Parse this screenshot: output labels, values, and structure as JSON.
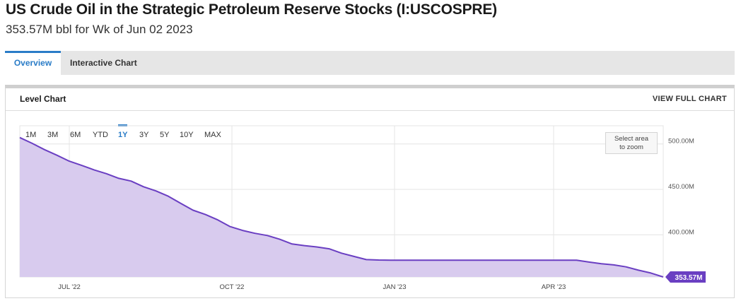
{
  "header": {
    "title": "US Crude Oil in the Strategic Petroleum Reserve Stocks (I:USCOSPRE)",
    "subtitle": "353.57M bbl for Wk of Jun 02 2023"
  },
  "tabs": [
    {
      "label": "Overview",
      "active": true
    },
    {
      "label": "Interactive Chart",
      "active": false
    }
  ],
  "card": {
    "title": "Level Chart",
    "view_full_label": "VIEW FULL CHART"
  },
  "range_buttons": [
    "1M",
    "3M",
    "6M",
    "YTD",
    "1Y",
    "3Y",
    "5Y",
    "10Y",
    "MAX"
  ],
  "range_selected": "1Y",
  "zoom_hint": {
    "line1": "Select area",
    "line2": "to zoom"
  },
  "colors": {
    "accent": "#2a7cc7",
    "line": "#6a3fc2",
    "area": "#d8cbee",
    "last_label_bg": "#6a3fc2"
  },
  "chart_data": {
    "type": "area",
    "title": "",
    "xlabel": "",
    "ylabel": "",
    "x": [
      "2022-06-03",
      "2022-06-10",
      "2022-06-17",
      "2022-06-24",
      "2022-07-01",
      "2022-07-08",
      "2022-07-15",
      "2022-07-22",
      "2022-07-29",
      "2022-08-05",
      "2022-08-12",
      "2022-08-19",
      "2022-08-26",
      "2022-09-02",
      "2022-09-09",
      "2022-09-16",
      "2022-09-23",
      "2022-09-30",
      "2022-10-07",
      "2022-10-14",
      "2022-10-21",
      "2022-10-28",
      "2022-11-04",
      "2022-11-11",
      "2022-11-18",
      "2022-11-25",
      "2022-12-02",
      "2022-12-09",
      "2022-12-16",
      "2022-12-23",
      "2022-12-30",
      "2023-01-06",
      "2023-01-13",
      "2023-01-20",
      "2023-01-27",
      "2023-02-03",
      "2023-02-10",
      "2023-02-17",
      "2023-02-24",
      "2023-03-03",
      "2023-03-10",
      "2023-03-17",
      "2023-03-24",
      "2023-03-31",
      "2023-04-07",
      "2023-04-14",
      "2023-04-21",
      "2023-04-28",
      "2023-05-05",
      "2023-05-12",
      "2023-05-19",
      "2023-05-26",
      "2023-06-02"
    ],
    "series": [
      {
        "values": [
          507.0,
          500.6,
          493.7,
          487.6,
          481.0,
          476.4,
          471.5,
          467.3,
          462.1,
          459.1,
          452.9,
          448.3,
          442.5,
          434.7,
          427.1,
          422.3,
          416.4,
          409.0,
          404.8,
          401.6,
          399.2,
          395.1,
          389.9,
          388.1,
          386.6,
          384.6,
          379.8,
          376.2,
          372.7,
          372.2,
          372.1,
          372.0,
          372.0,
          372.0,
          372.0,
          372.0,
          372.0,
          372.0,
          372.0,
          372.0,
          372.0,
          372.0,
          372.0,
          372.0,
          372.0,
          372.0,
          370.0,
          368.1,
          366.9,
          364.7,
          361.0,
          357.9,
          353.57
        ]
      }
    ],
    "ylim": [
      353.57,
      520
    ],
    "yticks": [
      {
        "value": 400,
        "label": "400.00M"
      },
      {
        "value": 450,
        "label": "450.00M"
      },
      {
        "value": 500,
        "label": "500.00M"
      }
    ],
    "xticks": [
      {
        "date": "2022-07-01",
        "label": "JUL '22"
      },
      {
        "date": "2022-10-01",
        "label": "OCT '22"
      },
      {
        "date": "2023-01-01",
        "label": "JAN '23"
      },
      {
        "date": "2023-04-01",
        "label": "APR '23"
      }
    ],
    "last_value_label": "353.57M",
    "grid": true,
    "legend": "none"
  }
}
